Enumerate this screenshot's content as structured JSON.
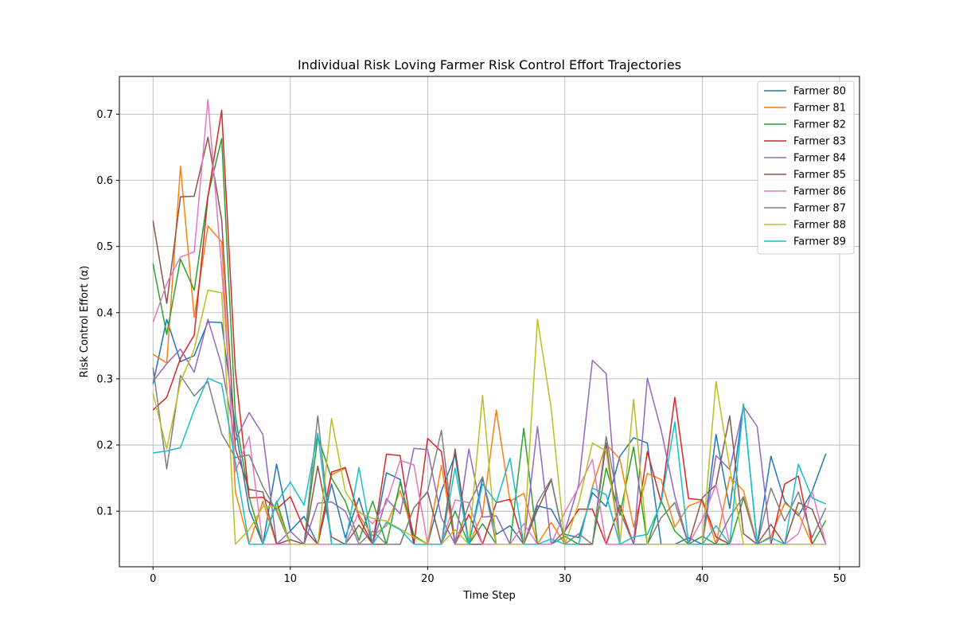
{
  "chart_data": {
    "type": "line",
    "title": "Individual Risk Loving Farmer Risk Control Effort Trajectories",
    "xlabel": "Time Step",
    "ylabel": "Risk Control Effort (α)",
    "xlim": [
      -2.45,
      51.45
    ],
    "ylim": [
      0.016,
      0.757
    ],
    "xticks": [
      0,
      10,
      20,
      30,
      40,
      50
    ],
    "yticks": [
      0.1,
      0.2,
      0.3,
      0.4,
      0.5,
      0.6,
      0.7
    ],
    "grid": true,
    "legend_position": "upper right",
    "x": [
      0,
      1,
      2,
      3,
      4,
      5,
      6,
      7,
      8,
      9,
      10,
      11,
      12,
      13,
      14,
      15,
      16,
      17,
      18,
      19,
      20,
      21,
      22,
      23,
      24,
      25,
      26,
      27,
      28,
      29,
      30,
      31,
      32,
      33,
      34,
      35,
      36,
      37,
      38,
      39,
      40,
      41,
      42,
      43,
      44,
      45,
      46,
      47,
      48,
      49
    ],
    "series": [
      {
        "name": "Farmer 80",
        "color": "#1f77b4",
        "values": [
          0.292,
          0.39,
          0.326,
          0.335,
          0.386,
          0.385,
          0.226,
          0.103,
          0.05,
          0.171,
          0.07,
          0.092,
          0.05,
          0.141,
          0.06,
          0.12,
          0.05,
          0.158,
          0.148,
          0.05,
          0.05,
          0.13,
          0.185,
          0.05,
          0.15,
          0.065,
          0.078,
          0.05,
          0.108,
          0.103,
          0.065,
          0.06,
          0.128,
          0.107,
          0.183,
          0.211,
          0.203,
          0.05,
          0.05,
          0.06,
          0.05,
          0.216,
          0.104,
          0.262,
          0.05,
          0.183,
          0.115,
          0.093,
          0.13,
          0.187
        ]
      },
      {
        "name": "Farmer 81",
        "color": "#ff7f0e",
        "values": [
          0.337,
          0.324,
          0.621,
          0.393,
          0.531,
          0.507,
          0.129,
          0.05,
          0.115,
          0.05,
          0.05,
          0.05,
          0.05,
          0.155,
          0.165,
          0.094,
          0.063,
          0.078,
          0.131,
          0.063,
          0.05,
          0.169,
          0.05,
          0.05,
          0.096,
          0.253,
          0.115,
          0.127,
          0.05,
          0.083,
          0.05,
          0.05,
          0.137,
          0.201,
          0.179,
          0.076,
          0.157,
          0.148,
          0.076,
          0.108,
          0.116,
          0.05,
          0.152,
          0.131,
          0.05,
          0.062,
          0.112,
          0.097,
          0.05,
          0.05
        ]
      },
      {
        "name": "Farmer 82",
        "color": "#2ca02c",
        "values": [
          0.474,
          0.367,
          0.481,
          0.434,
          0.577,
          0.663,
          0.243,
          0.121,
          0.05,
          0.115,
          0.05,
          0.05,
          0.213,
          0.15,
          0.115,
          0.056,
          0.115,
          0.05,
          0.144,
          0.063,
          0.05,
          0.05,
          0.1,
          0.05,
          0.081,
          0.05,
          0.05,
          0.225,
          0.05,
          0.05,
          0.062,
          0.05,
          0.05,
          0.165,
          0.094,
          0.197,
          0.05,
          0.116,
          0.07,
          0.05,
          0.062,
          0.05,
          0.05,
          0.12,
          0.05,
          0.05,
          0.05,
          0.05,
          0.05,
          0.086
        ]
      },
      {
        "name": "Farmer 83",
        "color": "#d62728",
        "values": [
          0.253,
          0.272,
          0.331,
          0.366,
          0.575,
          0.706,
          0.311,
          0.12,
          0.121,
          0.103,
          0.122,
          0.073,
          0.05,
          0.159,
          0.166,
          0.09,
          0.05,
          0.186,
          0.184,
          0.05,
          0.21,
          0.19,
          0.05,
          0.095,
          0.05,
          0.113,
          0.118,
          0.05,
          0.05,
          0.05,
          0.07,
          0.103,
          0.103,
          0.05,
          0.109,
          0.05,
          0.19,
          0.114,
          0.272,
          0.119,
          0.117,
          0.061,
          0.05,
          0.05,
          0.05,
          0.05,
          0.141,
          0.153,
          0.05,
          0.05
        ]
      },
      {
        "name": "Farmer 84",
        "color": "#9467bd",
        "values": [
          0.296,
          0.323,
          0.345,
          0.31,
          0.39,
          0.32,
          0.207,
          0.249,
          0.216,
          0.05,
          0.07,
          0.05,
          0.112,
          0.114,
          0.1,
          0.05,
          0.05,
          0.119,
          0.096,
          0.195,
          0.193,
          0.09,
          0.05,
          0.194,
          0.091,
          0.093,
          0.05,
          0.05,
          0.228,
          0.05,
          0.07,
          0.14,
          0.328,
          0.308,
          0.05,
          0.05,
          0.301,
          0.223,
          0.123,
          0.05,
          0.05,
          0.184,
          0.163,
          0.258,
          0.228,
          0.05,
          0.05,
          0.05,
          0.05,
          0.05
        ]
      },
      {
        "name": "Farmer 85",
        "color": "#8c564b",
        "values": [
          0.539,
          0.414,
          0.575,
          0.576,
          0.665,
          0.54,
          0.194,
          0.133,
          0.129,
          0.05,
          0.057,
          0.05,
          0.168,
          0.061,
          0.05,
          0.079,
          0.05,
          0.05,
          0.05,
          0.105,
          0.129,
          0.05,
          0.194,
          0.05,
          0.05,
          0.05,
          0.05,
          0.05,
          0.102,
          0.147,
          0.05,
          0.05,
          0.05,
          0.203,
          0.05,
          0.05,
          0.05,
          0.05,
          0.05,
          0.05,
          0.12,
          0.14,
          0.244,
          0.066,
          0.05,
          0.08,
          0.05,
          0.113,
          0.103,
          0.05
        ]
      },
      {
        "name": "Farmer 86",
        "color": "#e377c2",
        "values": [
          0.385,
          0.444,
          0.484,
          0.492,
          0.722,
          0.466,
          0.16,
          0.213,
          0.05,
          0.05,
          0.05,
          0.05,
          0.05,
          0.05,
          0.05,
          0.1,
          0.081,
          0.112,
          0.177,
          0.17,
          0.05,
          0.05,
          0.117,
          0.113,
          0.05,
          0.05,
          0.05,
          0.081,
          0.05,
          0.05,
          0.099,
          0.136,
          0.178,
          0.05,
          0.05,
          0.05,
          0.05,
          0.05,
          0.05,
          0.05,
          0.088,
          0.14,
          0.05,
          0.05,
          0.05,
          0.05,
          0.05,
          0.066,
          0.13,
          0.05
        ]
      },
      {
        "name": "Farmer 87",
        "color": "#7f7f7f",
        "values": [
          0.317,
          0.164,
          0.305,
          0.274,
          0.296,
          0.217,
          0.181,
          0.185,
          0.137,
          0.1,
          0.05,
          0.05,
          0.244,
          0.05,
          0.05,
          0.05,
          0.07,
          0.05,
          0.05,
          0.105,
          0.13,
          0.222,
          0.05,
          0.11,
          0.152,
          0.05,
          0.05,
          0.05,
          0.113,
          0.149,
          0.05,
          0.066,
          0.05,
          0.213,
          0.1,
          0.05,
          0.05,
          0.09,
          0.113,
          0.05,
          0.05,
          0.05,
          0.091,
          0.122,
          0.05,
          0.135,
          0.085,
          0.129,
          0.06,
          0.105
        ]
      },
      {
        "name": "Farmer 88",
        "color": "#bcbd22",
        "values": [
          0.278,
          0.194,
          0.295,
          0.345,
          0.434,
          0.43,
          0.05,
          0.072,
          0.107,
          0.107,
          0.05,
          0.05,
          0.05,
          0.24,
          0.13,
          0.098,
          0.089,
          0.085,
          0.073,
          0.061,
          0.05,
          0.05,
          0.072,
          0.05,
          0.275,
          0.05,
          0.05,
          0.05,
          0.39,
          0.255,
          0.05,
          0.112,
          0.203,
          0.191,
          0.05,
          0.269,
          0.05,
          0.05,
          0.05,
          0.05,
          0.05,
          0.296,
          0.165,
          0.05,
          0.05,
          0.05,
          0.05,
          0.05,
          0.05,
          0.05
        ]
      },
      {
        "name": "Farmer 89",
        "color": "#17becf",
        "values": [
          0.188,
          0.191,
          0.196,
          0.253,
          0.301,
          0.292,
          0.174,
          0.05,
          0.05,
          0.113,
          0.144,
          0.109,
          0.218,
          0.05,
          0.05,
          0.166,
          0.05,
          0.083,
          0.072,
          0.05,
          0.05,
          0.05,
          0.165,
          0.05,
          0.141,
          0.113,
          0.18,
          0.05,
          0.05,
          0.058,
          0.05,
          0.05,
          0.135,
          0.125,
          0.05,
          0.061,
          0.065,
          0.112,
          0.235,
          0.05,
          0.05,
          0.078,
          0.05,
          0.262,
          0.05,
          0.06,
          0.05,
          0.171,
          0.12,
          0.111
        ]
      }
    ]
  }
}
